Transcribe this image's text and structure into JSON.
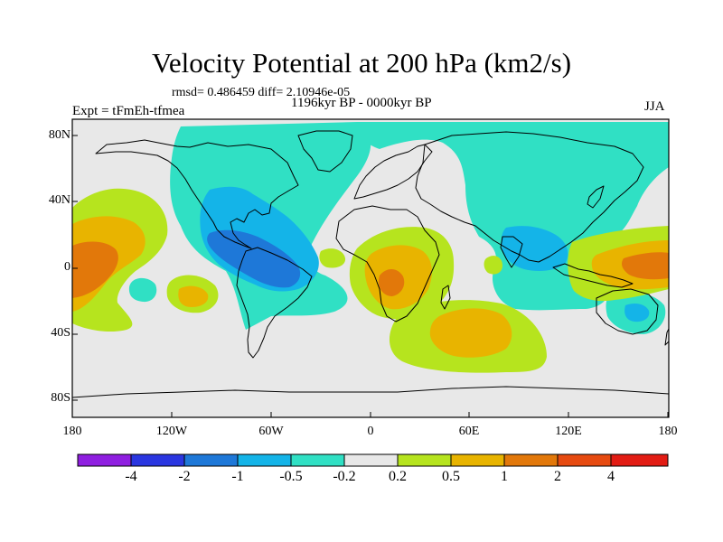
{
  "title": "Velocity Potential at 200 hPa (km2/s)",
  "stats_line": "rmsd= 0.486459 diff= 2.10946e-05",
  "period_line": "1196kyr BP - 0000kyr BP",
  "experiment_label": "Expt = tFmEh-tfmea",
  "season_label": "JJA",
  "map": {
    "projection": "equidistant cylindrical",
    "lon_range": [
      -180,
      180
    ],
    "lat_range": [
      -90,
      90
    ],
    "lat_ticks": [
      "80N",
      "40N",
      "0",
      "40S",
      "80S"
    ],
    "lon_ticks": [
      "180",
      "120W",
      "60W",
      "0",
      "60E",
      "120E",
      "180"
    ]
  },
  "colorbar": {
    "labels": [
      "-4",
      "-2",
      "-1",
      "-0.5",
      "-0.2",
      "0.2",
      "0.5",
      "1",
      "2",
      "4"
    ],
    "colors": [
      "#8f1fe0",
      "#2a36e0",
      "#1e78d8",
      "#14b4e8",
      "#30e0c4",
      "#e8e8e8",
      "#b6e41e",
      "#e8b400",
      "#e2780a",
      "#e64a10",
      "#e21c14"
    ]
  },
  "colors": {
    "neutral": "#e8e8e8",
    "weak_negative": "#30e0c4",
    "moderate_negative": "#14b4e8",
    "strong_negative": "#1e78d8",
    "weak_positive": "#b6e41e",
    "moderate_positive": "#e8b400",
    "strong_positive": "#e2780a"
  }
}
